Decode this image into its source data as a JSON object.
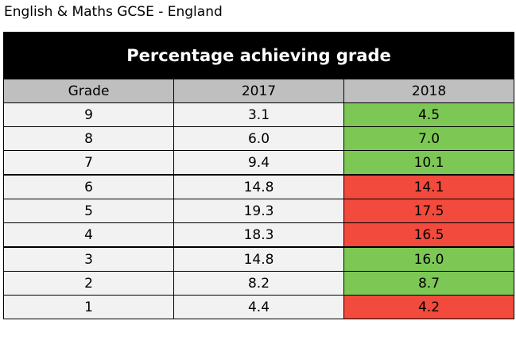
{
  "page": {
    "title": "English & Maths GCSE - England"
  },
  "chart_data": {
    "type": "table",
    "title": "Percentage achieving grade",
    "columns": [
      "Grade",
      "2017",
      "2018"
    ],
    "rows": [
      {
        "grade": "9",
        "y2017": "3.1",
        "y2018": "4.5",
        "change": "up"
      },
      {
        "grade": "8",
        "y2017": "6.0",
        "y2018": "7.0",
        "change": "up"
      },
      {
        "grade": "7",
        "y2017": "9.4",
        "y2018": "10.1",
        "change": "up"
      },
      {
        "grade": "6",
        "y2017": "14.8",
        "y2018": "14.1",
        "change": "down"
      },
      {
        "grade": "5",
        "y2017": "19.3",
        "y2018": "17.5",
        "change": "down"
      },
      {
        "grade": "4",
        "y2017": "18.3",
        "y2018": "16.5",
        "change": "down"
      },
      {
        "grade": "3",
        "y2017": "14.8",
        "y2018": "16.0",
        "change": "up"
      },
      {
        "grade": "2",
        "y2017": "8.2",
        "y2018": "8.7",
        "change": "up"
      },
      {
        "grade": "1",
        "y2017": "4.4",
        "y2018": "4.2",
        "change": "down"
      }
    ],
    "group_breaks_after_grades": [
      "7",
      "4"
    ],
    "colors": {
      "increase": "#7dc855",
      "decrease": "#f24a3c",
      "header_bg": "#000000",
      "column_header_bg": "#bfbfbf",
      "cell_bg": "#f2f2f2"
    }
  }
}
